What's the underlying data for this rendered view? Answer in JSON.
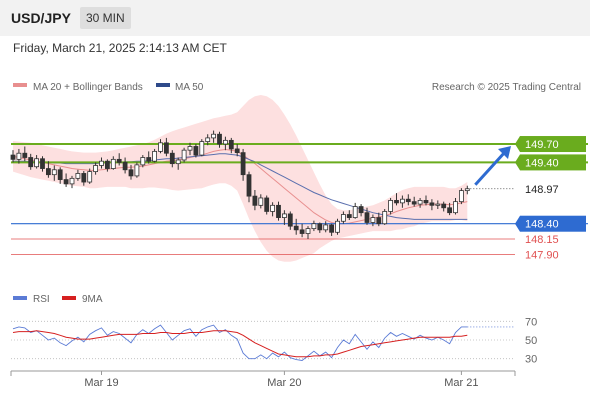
{
  "header": {
    "pair": "USD/JPY",
    "timeframe": "30 MIN",
    "timestamp": "Friday, March 21, 2025 2:14:13 AM CET"
  },
  "legend": {
    "ma20": "MA 20 + Bollinger Bands",
    "ma50": "MA 50",
    "source": "Research © 2025 Trading Central",
    "rsi": "RSI",
    "ma9": "9MA"
  },
  "colors": {
    "candle": "#333333",
    "candle_up_fill": "#ffffff",
    "ma20": "#e88f8f",
    "ma50": "#5a6fae",
    "bollinger": "#fde0e0",
    "resistance": "#6aac1e",
    "support": "#2e6bd1",
    "target": "#e05050",
    "arrow": "#2e6bd1",
    "rsi": "#5b7bd5",
    "ma9": "#d62020"
  },
  "chart_data": [
    {
      "type": "candlestick",
      "title": "USD/JPY",
      "ylim": [
        147.4,
        150.5
      ],
      "x_ticks": [
        "Mar 19",
        "Mar 20",
        "Mar 21"
      ],
      "candles": [
        [
          149.52,
          149.6,
          149.4,
          149.45
        ],
        [
          149.45,
          149.62,
          149.38,
          149.55
        ],
        [
          149.55,
          149.66,
          149.42,
          149.48
        ],
        [
          149.48,
          149.54,
          149.28,
          149.33
        ],
        [
          149.33,
          149.52,
          149.3,
          149.46
        ],
        [
          149.46,
          149.5,
          149.25,
          149.3
        ],
        [
          149.3,
          149.42,
          149.15,
          149.2
        ],
        [
          149.2,
          149.35,
          149.1,
          149.28
        ],
        [
          149.28,
          149.32,
          149.05,
          149.12
        ],
        [
          149.12,
          149.22,
          149.0,
          149.05
        ],
        [
          149.05,
          149.18,
          148.98,
          149.14
        ],
        [
          149.14,
          149.28,
          149.1,
          149.22
        ],
        [
          149.22,
          149.26,
          149.02,
          149.08
        ],
        [
          149.08,
          149.3,
          149.05,
          149.25
        ],
        [
          149.25,
          149.4,
          149.2,
          149.35
        ],
        [
          149.35,
          149.48,
          149.3,
          149.42
        ],
        [
          149.42,
          149.45,
          149.25,
          149.3
        ],
        [
          149.3,
          149.5,
          149.28,
          149.45
        ],
        [
          149.45,
          149.55,
          149.35,
          149.4
        ],
        [
          149.4,
          149.48,
          149.22,
          149.28
        ],
        [
          149.28,
          149.36,
          149.12,
          149.18
        ],
        [
          149.18,
          149.4,
          149.15,
          149.36
        ],
        [
          149.36,
          149.52,
          149.32,
          149.48
        ],
        [
          149.48,
          149.58,
          149.38,
          149.42
        ],
        [
          149.42,
          149.62,
          149.4,
          149.58
        ],
        [
          149.58,
          149.78,
          149.55,
          149.72
        ],
        [
          149.72,
          149.8,
          149.5,
          149.55
        ],
        [
          149.55,
          149.6,
          149.32,
          149.38
        ],
        [
          149.38,
          149.48,
          149.28,
          149.44
        ],
        [
          149.44,
          149.64,
          149.4,
          149.6
        ],
        [
          149.6,
          149.72,
          149.52,
          149.66
        ],
        [
          149.66,
          149.7,
          149.48,
          149.52
        ],
        [
          149.52,
          149.78,
          149.5,
          149.74
        ],
        [
          149.74,
          149.86,
          149.68,
          149.8
        ],
        [
          149.8,
          149.92,
          149.72,
          149.86
        ],
        [
          149.86,
          149.9,
          149.64,
          149.7
        ],
        [
          149.7,
          149.82,
          149.6,
          149.76
        ],
        [
          149.76,
          149.8,
          149.55,
          149.62
        ],
        [
          149.62,
          149.7,
          149.5,
          149.56
        ],
        [
          149.56,
          149.62,
          149.1,
          149.2
        ],
        [
          149.2,
          149.25,
          148.75,
          148.85
        ],
        [
          148.85,
          148.95,
          148.62,
          148.7
        ],
        [
          148.7,
          148.88,
          148.65,
          148.82
        ],
        [
          148.82,
          148.86,
          148.55,
          148.6
        ],
        [
          148.6,
          148.75,
          148.52,
          148.7
        ],
        [
          148.7,
          148.76,
          148.45,
          148.5
        ],
        [
          148.5,
          148.62,
          148.38,
          148.56
        ],
        [
          148.56,
          148.6,
          148.3,
          148.36
        ],
        [
          148.36,
          148.48,
          148.22,
          148.3
        ],
        [
          148.3,
          148.4,
          148.18,
          148.24
        ],
        [
          148.24,
          148.36,
          148.15,
          148.32
        ],
        [
          148.32,
          148.45,
          148.28,
          148.4
        ],
        [
          148.4,
          148.42,
          148.25,
          148.3
        ],
        [
          148.3,
          148.44,
          148.26,
          148.38
        ],
        [
          148.38,
          148.4,
          148.2,
          148.26
        ],
        [
          148.26,
          148.48,
          148.22,
          148.44
        ],
        [
          148.44,
          148.6,
          148.4,
          148.55
        ],
        [
          148.55,
          148.62,
          148.46,
          148.5
        ],
        [
          148.5,
          148.74,
          148.48,
          148.68
        ],
        [
          148.68,
          148.72,
          148.52,
          148.58
        ],
        [
          148.58,
          148.66,
          148.38,
          148.42
        ],
        [
          148.42,
          148.55,
          148.36,
          148.5
        ],
        [
          148.5,
          148.58,
          148.36,
          148.4
        ],
        [
          148.4,
          148.64,
          148.38,
          148.6
        ],
        [
          148.6,
          148.82,
          148.55,
          148.78
        ],
        [
          148.78,
          148.9,
          148.7,
          148.74
        ],
        [
          148.74,
          148.86,
          148.66,
          148.8
        ],
        [
          148.8,
          148.88,
          148.7,
          148.76
        ],
        [
          148.76,
          148.84,
          148.68,
          148.72
        ],
        [
          148.72,
          148.82,
          148.66,
          148.78
        ],
        [
          148.78,
          148.86,
          148.7,
          148.74
        ],
        [
          148.74,
          148.8,
          148.62,
          148.7
        ],
        [
          148.7,
          148.78,
          148.64,
          148.72
        ],
        [
          148.72,
          148.76,
          148.6,
          148.66
        ],
        [
          148.66,
          148.74,
          148.54,
          148.58
        ],
        [
          148.58,
          148.82,
          148.55,
          148.76
        ],
        [
          148.76,
          148.98,
          148.72,
          148.94
        ],
        [
          148.94,
          149.02,
          148.88,
          148.97
        ]
      ],
      "ma20_values": [
        149.5,
        149.48,
        149.46,
        149.44,
        149.42,
        149.4,
        149.38,
        149.36,
        149.34,
        149.32,
        149.3,
        149.29,
        149.28,
        149.27,
        149.27,
        149.28,
        149.29,
        149.3,
        149.31,
        149.32,
        149.32,
        149.33,
        149.34,
        149.36,
        149.38,
        149.4,
        149.42,
        149.43,
        149.44,
        149.46,
        149.48,
        149.5,
        149.52,
        149.55,
        149.58,
        149.6,
        149.61,
        149.6,
        149.58,
        149.52,
        149.45,
        149.38,
        149.3,
        149.22,
        149.14,
        149.06,
        148.98,
        148.9,
        148.82,
        148.74,
        148.66,
        148.58,
        148.52,
        148.46,
        148.42,
        148.4,
        148.4,
        148.41,
        148.43,
        148.45,
        148.47,
        148.49,
        148.51,
        148.53,
        148.56,
        148.6,
        148.63,
        148.66,
        148.68,
        148.7,
        148.71,
        148.72,
        148.72,
        148.72,
        148.71,
        148.72,
        148.74,
        148.76
      ],
      "ma50_values": [
        149.42,
        149.42,
        149.42,
        149.41,
        149.41,
        149.4,
        149.4,
        149.39,
        149.39,
        149.38,
        149.38,
        149.38,
        149.38,
        149.38,
        149.38,
        149.39,
        149.39,
        149.4,
        149.4,
        149.41,
        149.41,
        149.42,
        149.42,
        149.43,
        149.44,
        149.45,
        149.46,
        149.46,
        149.47,
        149.48,
        149.49,
        149.5,
        149.51,
        149.52,
        149.53,
        149.54,
        149.54,
        149.53,
        149.52,
        149.49,
        149.45,
        149.41,
        149.36,
        149.31,
        149.26,
        149.21,
        149.16,
        149.11,
        149.06,
        149.01,
        148.96,
        148.91,
        148.87,
        148.83,
        148.79,
        148.76,
        148.73,
        148.7,
        148.67,
        148.64,
        148.61,
        148.58,
        148.56,
        148.54,
        148.52,
        148.5,
        148.49,
        148.48,
        148.47,
        148.47,
        148.47,
        148.47,
        148.47,
        148.47,
        148.47,
        148.47,
        148.47,
        148.47
      ],
      "bollinger_upper": [
        149.75,
        149.74,
        149.73,
        149.72,
        149.7,
        149.68,
        149.66,
        149.64,
        149.62,
        149.6,
        149.58,
        149.57,
        149.56,
        149.56,
        149.56,
        149.57,
        149.58,
        149.6,
        149.62,
        149.64,
        149.66,
        149.68,
        149.7,
        149.73,
        149.77,
        149.82,
        149.87,
        149.91,
        149.94,
        149.97,
        150.0,
        150.03,
        150.06,
        150.09,
        150.12,
        150.14,
        150.16,
        150.18,
        150.22,
        150.32,
        150.42,
        150.48,
        150.5,
        150.48,
        150.42,
        150.32,
        150.18,
        150.02,
        149.84,
        149.64,
        149.44,
        149.24,
        149.04,
        148.86,
        148.72,
        148.64,
        148.62,
        148.62,
        148.64,
        148.66,
        148.68,
        148.7,
        148.74,
        148.78,
        148.84,
        148.9,
        148.95,
        148.98,
        149.0,
        149.0,
        149.0,
        149.0,
        149.0,
        149.0,
        148.98,
        148.98,
        149.02,
        149.08
      ],
      "bollinger_lower": [
        149.25,
        149.22,
        149.19,
        149.16,
        149.14,
        149.12,
        149.1,
        149.08,
        149.06,
        149.04,
        149.02,
        149.01,
        149.0,
        148.98,
        148.98,
        148.99,
        149.0,
        149.0,
        149.0,
        149.0,
        148.98,
        148.98,
        148.98,
        148.99,
        148.99,
        148.98,
        148.97,
        148.95,
        148.94,
        148.95,
        148.96,
        148.97,
        148.98,
        149.01,
        149.04,
        149.06,
        149.06,
        149.02,
        148.94,
        148.72,
        148.48,
        148.28,
        148.1,
        147.96,
        147.86,
        147.8,
        147.78,
        147.78,
        147.8,
        147.84,
        147.88,
        147.92,
        148.0,
        148.06,
        148.12,
        148.16,
        148.18,
        148.2,
        148.22,
        148.24,
        148.26,
        148.28,
        148.28,
        148.28,
        148.28,
        148.3,
        148.31,
        148.34,
        148.36,
        148.4,
        148.42,
        148.44,
        148.44,
        148.44,
        148.44,
        148.46,
        148.46,
        148.44
      ],
      "levels": {
        "resistance": [
          "149.70",
          "149.40"
        ],
        "last": "148.97",
        "support": [
          "148.40"
        ],
        "targets": [
          "148.15",
          "147.90"
        ]
      },
      "projection": "up toward 149.70",
      "legend_position": "top-left"
    },
    {
      "type": "line",
      "title": "RSI",
      "ylim": [
        20,
        80
      ],
      "y_ticks": [
        "70",
        "50",
        "30"
      ],
      "series": [
        {
          "name": "RSI",
          "values": [
            62,
            64,
            63,
            58,
            60,
            55,
            50,
            52,
            47,
            44,
            49,
            53,
            48,
            56,
            60,
            63,
            55,
            59,
            57,
            52,
            47,
            56,
            61,
            57,
            62,
            66,
            58,
            50,
            55,
            60,
            62,
            54,
            61,
            64,
            66,
            58,
            61,
            55,
            51,
            36,
            30,
            30,
            34,
            30,
            36,
            32,
            37,
            31,
            29,
            28,
            33,
            38,
            33,
            37,
            31,
            42,
            50,
            46,
            56,
            48,
            40,
            48,
            42,
            52,
            58,
            54,
            57,
            54,
            51,
            55,
            52,
            50,
            53,
            50,
            46,
            58,
            64,
            64
          ]
        },
        {
          "name": "9MA",
          "values": [
            58,
            59,
            59,
            59,
            60,
            59,
            58,
            57,
            55,
            53,
            52,
            51,
            51,
            51,
            52,
            53,
            54,
            55,
            56,
            56,
            56,
            56,
            57,
            57,
            57,
            58,
            58,
            57,
            57,
            57,
            58,
            58,
            58,
            59,
            60,
            60,
            60,
            59,
            58,
            55,
            51,
            47,
            44,
            41,
            38,
            35,
            34,
            33,
            32,
            32,
            32,
            33,
            33,
            34,
            34,
            35,
            37,
            39,
            41,
            43,
            44,
            45,
            46,
            47,
            48,
            49,
            50,
            51,
            52,
            53,
            53,
            53,
            53,
            53,
            53,
            54,
            54,
            55
          ]
        }
      ]
    }
  ]
}
